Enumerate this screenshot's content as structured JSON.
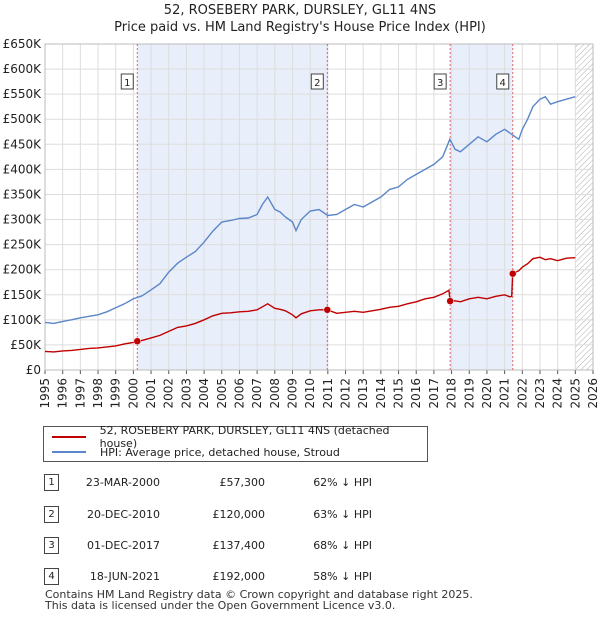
{
  "title_line1": "52, ROSEBERY PARK, DURSLEY, GL11 4NS",
  "title_line2": "Price paid vs. HM Land Registry's House Price Index (HPI)",
  "chart_data": {
    "type": "line",
    "xlim": [
      1995,
      2026
    ],
    "ylim": [
      0,
      650000
    ],
    "y_ticks": [
      0,
      50000,
      100000,
      150000,
      200000,
      250000,
      300000,
      350000,
      400000,
      450000,
      500000,
      550000,
      600000,
      650000
    ],
    "y_tick_labels": [
      "£0",
      "£50K",
      "£100K",
      "£150K",
      "£200K",
      "£250K",
      "£300K",
      "£350K",
      "£400K",
      "£450K",
      "£500K",
      "£550K",
      "£600K",
      "£650K"
    ],
    "x_tick_labels": [
      "1995",
      "1996",
      "1997",
      "1998",
      "1999",
      "2000",
      "2001",
      "2002",
      "2003",
      "2004",
      "2005",
      "2006",
      "2007",
      "2008",
      "2009",
      "2010",
      "2011",
      "2012",
      "2013",
      "2014",
      "2015",
      "2016",
      "2017",
      "2018",
      "2019",
      "2020",
      "2021",
      "2022",
      "2023",
      "2024",
      "2025",
      "2026"
    ],
    "grid": true,
    "hatched_from": 2025.0,
    "shaded_ranges": [
      [
        2000.22,
        2010.97
      ],
      [
        2017.92,
        2021.46
      ]
    ],
    "series": [
      {
        "name": "HPI: Average price, detached house, Stroud",
        "color": "#5b86c8",
        "x": [
          1995.0,
          1995.5,
          1996.0,
          1996.5,
          1997.0,
          1997.5,
          1998.0,
          1998.5,
          1999.0,
          1999.5,
          2000.0,
          2000.5,
          2001.0,
          2001.5,
          2002.0,
          2002.5,
          2003.0,
          2003.5,
          2004.0,
          2004.5,
          2005.0,
          2005.5,
          2006.0,
          2006.5,
          2007.0,
          2007.3,
          2007.6,
          2008.0,
          2008.3,
          2008.6,
          2009.0,
          2009.2,
          2009.5,
          2010.0,
          2010.5,
          2011.0,
          2011.5,
          2012.0,
          2012.5,
          2013.0,
          2013.5,
          2014.0,
          2014.5,
          2015.0,
          2015.5,
          2016.0,
          2016.5,
          2017.0,
          2017.5,
          2017.9,
          2018.2,
          2018.5,
          2019.0,
          2019.5,
          2020.0,
          2020.5,
          2021.0,
          2021.4,
          2021.8,
          2022.0,
          2022.3,
          2022.6,
          2023.0,
          2023.3,
          2023.6,
          2024.0,
          2024.5,
          2025.0
        ],
        "y": [
          95000,
          93000,
          97000,
          100000,
          104000,
          107000,
          110000,
          116000,
          124000,
          132000,
          142000,
          148000,
          160000,
          172000,
          195000,
          213000,
          225000,
          236000,
          255000,
          277000,
          295000,
          298000,
          302000,
          303000,
          310000,
          330000,
          345000,
          320000,
          315000,
          305000,
          295000,
          278000,
          300000,
          317000,
          320000,
          308000,
          310000,
          320000,
          330000,
          325000,
          335000,
          345000,
          360000,
          365000,
          380000,
          390000,
          400000,
          410000,
          425000,
          460000,
          440000,
          435000,
          450000,
          465000,
          455000,
          470000,
          480000,
          470000,
          460000,
          480000,
          500000,
          525000,
          540000,
          545000,
          530000,
          535000,
          540000,
          545000
        ]
      },
      {
        "name": "52, ROSEBERY PARK, DURSLEY, GL11 4NS (detached house)",
        "color": "#c00000",
        "x": [
          1995.0,
          1995.5,
          1996.0,
          1996.5,
          1997.0,
          1997.5,
          1998.0,
          1998.5,
          1999.0,
          1999.5,
          2000.0,
          2000.22,
          2000.5,
          2001.0,
          2001.5,
          2002.0,
          2002.5,
          2003.0,
          2003.5,
          2004.0,
          2004.5,
          2005.0,
          2005.5,
          2006.0,
          2006.5,
          2007.0,
          2007.3,
          2007.6,
          2008.0,
          2008.3,
          2008.6,
          2009.0,
          2009.2,
          2009.5,
          2010.0,
          2010.5,
          2010.97,
          2011.2,
          2011.5,
          2012.0,
          2012.5,
          2013.0,
          2013.5,
          2014.0,
          2014.5,
          2015.0,
          2015.5,
          2016.0,
          2016.5,
          2017.0,
          2017.5,
          2017.85,
          2017.92,
          2018.2,
          2018.5,
          2019.0,
          2019.5,
          2020.0,
          2020.5,
          2021.0,
          2021.3,
          2021.4,
          2021.46,
          2021.8,
          2022.0,
          2022.3,
          2022.6,
          2023.0,
          2023.3,
          2023.6,
          2024.0,
          2024.5,
          2025.0
        ],
        "y": [
          37000,
          36000,
          38000,
          39000,
          41000,
          43000,
          44000,
          46000,
          48000,
          52000,
          55000,
          57300,
          59000,
          64000,
          69000,
          77000,
          85000,
          88000,
          93000,
          100000,
          108000,
          113000,
          114000,
          116000,
          117000,
          120000,
          126000,
          132000,
          123000,
          121000,
          118000,
          110000,
          104000,
          112000,
          118000,
          120000,
          120000,
          117000,
          113000,
          115000,
          117000,
          115000,
          118000,
          121000,
          125000,
          127000,
          132000,
          136000,
          142000,
          145000,
          152000,
          159000,
          137400,
          138000,
          136000,
          142000,
          145000,
          142000,
          147000,
          150000,
          146000,
          147000,
          192000,
          198000,
          205000,
          212000,
          222000,
          225000,
          220000,
          222000,
          218000,
          223000,
          224000
        ]
      }
    ],
    "sales": [
      {
        "label": "1",
        "x": 2000.22,
        "y": 57300
      },
      {
        "label": "2",
        "x": 2010.97,
        "y": 120000
      },
      {
        "label": "3",
        "x": 2017.92,
        "y": 137400
      },
      {
        "label": "4",
        "x": 2021.46,
        "y": 192000
      }
    ]
  },
  "legend": {
    "property": "52, ROSEBERY PARK, DURSLEY, GL11 4NS (detached house)",
    "hpi": "HPI: Average price, detached house, Stroud",
    "property_color": "#c00000",
    "hpi_color": "#5b86c8"
  },
  "transactions": [
    {
      "num": "1",
      "date": "23-MAR-2000",
      "price": "£57,300",
      "hpi": "62% ↓ HPI"
    },
    {
      "num": "2",
      "date": "20-DEC-2010",
      "price": "£120,000",
      "hpi": "63% ↓ HPI"
    },
    {
      "num": "3",
      "date": "01-DEC-2017",
      "price": "£137,400",
      "hpi": "68% ↓ HPI"
    },
    {
      "num": "4",
      "date": "18-JUN-2021",
      "price": "£192,000",
      "hpi": "58% ↓ HPI"
    }
  ],
  "footer_line1": "Contains HM Land Registry data © Crown copyright and database right 2025.",
  "footer_line2": "This data is licensed under the Open Government Licence v3.0."
}
